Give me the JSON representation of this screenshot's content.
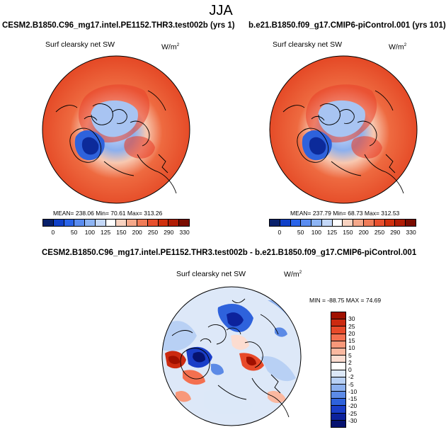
{
  "season": "JJA",
  "panels": {
    "left": {
      "case": "CESM2.B1850.C96_mg17.intel.PE1152.THR3.test002b (yrs 1)",
      "variable": "Surf clearsky net SW",
      "units_base": "W/m",
      "units_exp": "2",
      "stats": "MEAN= 238.06  Min=  70.61  Max= 313.26"
    },
    "right": {
      "case": "b.e21.B1850.f09_g17.CMIP6-piControl.001 (yrs 101)",
      "variable": "Surf clearsky net SW",
      "units_base": "W/m",
      "units_exp": "2",
      "stats": "MEAN= 237.79  Min=  68.73  Max= 312.53"
    },
    "diff": {
      "case": "CESM2.B1850.C96_mg17.intel.PE1152.THR3.test002b - b.e21.B1850.f09_g17.CMIP6-piControl.001",
      "variable": "Surf clearsky net SW",
      "units_base": "W/m",
      "units_exp": "2",
      "stats": "MIN = -88.75  MAX =  74.69"
    }
  },
  "colorbar_abs": {
    "labels": [
      "0",
      "50",
      "100",
      "125",
      "150",
      "200",
      "250",
      "290",
      "330"
    ],
    "colors": [
      "#08206b",
      "#1040c8",
      "#2a64e8",
      "#5a8cf0",
      "#8db4f4",
      "#c4d8f8",
      "#ffffff",
      "#f8d2c0",
      "#f5a88a",
      "#f07c58",
      "#e8502e",
      "#d0300e",
      "#b01c04",
      "#7a0c00"
    ]
  },
  "colorbar_diff": {
    "labels": [
      "30",
      "25",
      "20",
      "15",
      "10",
      "5",
      "2",
      "0",
      "-2",
      "-5",
      "-10",
      "-15",
      "-20",
      "-25",
      "-30"
    ],
    "colors": [
      "#a01000",
      "#cc2a10",
      "#e84a2a",
      "#f47050",
      "#f8987a",
      "#fab8a0",
      "#fcdcd0",
      "#ffffff",
      "#dce8f8",
      "#b8d0f4",
      "#8cb0ee",
      "#5c8ae6",
      "#2e62dc",
      "#1a3ec8",
      "#0c229c",
      "#061270"
    ]
  }
}
